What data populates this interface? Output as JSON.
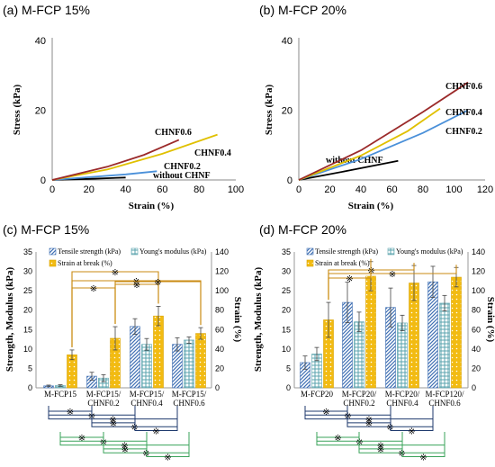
{
  "chart_data": [
    {
      "id": "a",
      "type": "line",
      "title": "(a) M-FCP 15%",
      "xlabel": "Strain (%)",
      "ylabel": "Stress (kPa)",
      "xlim": [
        0,
        100
      ],
      "ylim": [
        0,
        40
      ],
      "xticks": [
        0,
        20,
        40,
        60,
        80,
        100
      ],
      "yticks": [
        0,
        20,
        40
      ],
      "colors": [
        "#000000",
        "#4a90d9",
        "#e0c000",
        "#9b2a2a"
      ],
      "series": [
        {
          "name": "without CHNF",
          "points": [
            [
              0,
              0
            ],
            [
              20,
              0.3
            ],
            [
              40,
              0.7
            ]
          ]
        },
        {
          "name": "CHNF0.2",
          "points": [
            [
              0,
              0
            ],
            [
              20,
              0.8
            ],
            [
              40,
              1.6
            ],
            [
              57,
              2.5
            ]
          ]
        },
        {
          "name": "CHNF0.4",
          "points": [
            [
              0,
              0
            ],
            [
              30,
              3.0
            ],
            [
              60,
              7.5
            ],
            [
              90,
              13
            ]
          ]
        },
        {
          "name": "CHNF0.6",
          "points": [
            [
              0,
              0
            ],
            [
              30,
              3.8
            ],
            [
              50,
              7.2
            ],
            [
              69,
              11.5
            ]
          ]
        }
      ]
    },
    {
      "id": "b",
      "type": "line",
      "title": "(b) M-FCP 20%",
      "xlabel": "Strain (%)",
      "ylabel": "Stress (kPa)",
      "xlim": [
        0,
        120
      ],
      "ylim": [
        0,
        40
      ],
      "xticks": [
        0,
        20,
        40,
        60,
        80,
        100,
        120
      ],
      "yticks": [
        0,
        20,
        40
      ],
      "colors": [
        "#000000",
        "#4a90d9",
        "#e0c000",
        "#9b2a2a"
      ],
      "series": [
        {
          "name": "without CHNF",
          "points": [
            [
              0,
              0
            ],
            [
              30,
              2.5
            ],
            [
              64,
              5.5
            ]
          ]
        },
        {
          "name": "CHNF0.2",
          "points": [
            [
              0,
              0
            ],
            [
              40,
              6.0
            ],
            [
              80,
              13.5
            ],
            [
              109,
              20
            ]
          ]
        },
        {
          "name": "CHNF0.4",
          "points": [
            [
              0,
              0
            ],
            [
              40,
              7.0
            ],
            [
              70,
              14.0
            ],
            [
              91,
              20.5
            ]
          ]
        },
        {
          "name": "CHNF0.6",
          "points": [
            [
              0,
              0
            ],
            [
              40,
              8.5
            ],
            [
              80,
              19.5
            ],
            [
              109,
              28
            ]
          ]
        }
      ]
    },
    {
      "id": "c",
      "type": "bar",
      "title": "(c) M-FCP 15%",
      "ylabel": "Strength, Modulus (kPa)",
      "y2label": "Strain (%)",
      "ylim": [
        0,
        35
      ],
      "y2lim": [
        0,
        140
      ],
      "yticks": [
        0,
        5,
        10,
        15,
        20,
        25,
        30,
        35
      ],
      "y2ticks": [
        0,
        20,
        40,
        60,
        80,
        100,
        120,
        140
      ],
      "categories": [
        "M-FCP15",
        "M-FCP15/\nCHNF0.2",
        "M-FCP15/\nCHNF0.4",
        "M-FCP15/\nCHNF0.6"
      ],
      "legend_position": "top-left",
      "series": [
        {
          "name": "Tensile strength (kPa)",
          "axis": "left",
          "color": "#3f6fb3",
          "values": [
            0.5,
            3.0,
            15.8,
            11.2
          ],
          "errors": [
            0.2,
            1.0,
            2.0,
            1.7
          ]
        },
        {
          "name": "Young's modulus (kPa)",
          "axis": "left",
          "color": "#5aa3ad",
          "values": [
            0.6,
            2.5,
            11.2,
            12.3
          ],
          "errors": [
            0.2,
            0.9,
            1.5,
            0.8
          ]
        },
        {
          "name": "Strain at break (%)",
          "axis": "right",
          "color": "#f2bb12",
          "values": [
            34,
            51,
            74,
            56
          ],
          "errors": [
            5,
            12,
            10,
            6
          ]
        }
      ],
      "significance": "※"
    },
    {
      "id": "d",
      "type": "bar",
      "title": "(d) M-FCP 20%",
      "ylabel": "Strength, Modulus (kPa)",
      "y2label": "Strain (%)",
      "ylim": [
        0,
        35
      ],
      "y2lim": [
        0,
        140
      ],
      "yticks": [
        0,
        5,
        10,
        15,
        20,
        25,
        30,
        35
      ],
      "y2ticks": [
        0,
        20,
        40,
        60,
        80,
        100,
        120,
        140
      ],
      "categories": [
        "M-FCP20",
        "M-FCP20/\nCHNF0.2",
        "M-FCP20/\nCHNF0.4",
        "M-FCP120/\nCHNF0.6"
      ],
      "legend_position": "top-left",
      "series": [
        {
          "name": "Tensile strength (kPa)",
          "axis": "left",
          "color": "#3f6fb3",
          "values": [
            6.5,
            22.0,
            20.7,
            27.3
          ],
          "errors": [
            1.7,
            5.2,
            5.0,
            4.0
          ]
        },
        {
          "name": "Young's modulus (kPa)",
          "axis": "left",
          "color": "#5aa3ad",
          "values": [
            8.7,
            17.0,
            16.7,
            21.8
          ],
          "errors": [
            1.7,
            2.5,
            2.0,
            2.0
          ]
        },
        {
          "name": "Strain at break (%)",
          "axis": "right",
          "color": "#f2bb12",
          "values": [
            70,
            115,
            108,
            114
          ],
          "errors": [
            18,
            15,
            18,
            10
          ]
        }
      ],
      "significance": "※"
    }
  ]
}
